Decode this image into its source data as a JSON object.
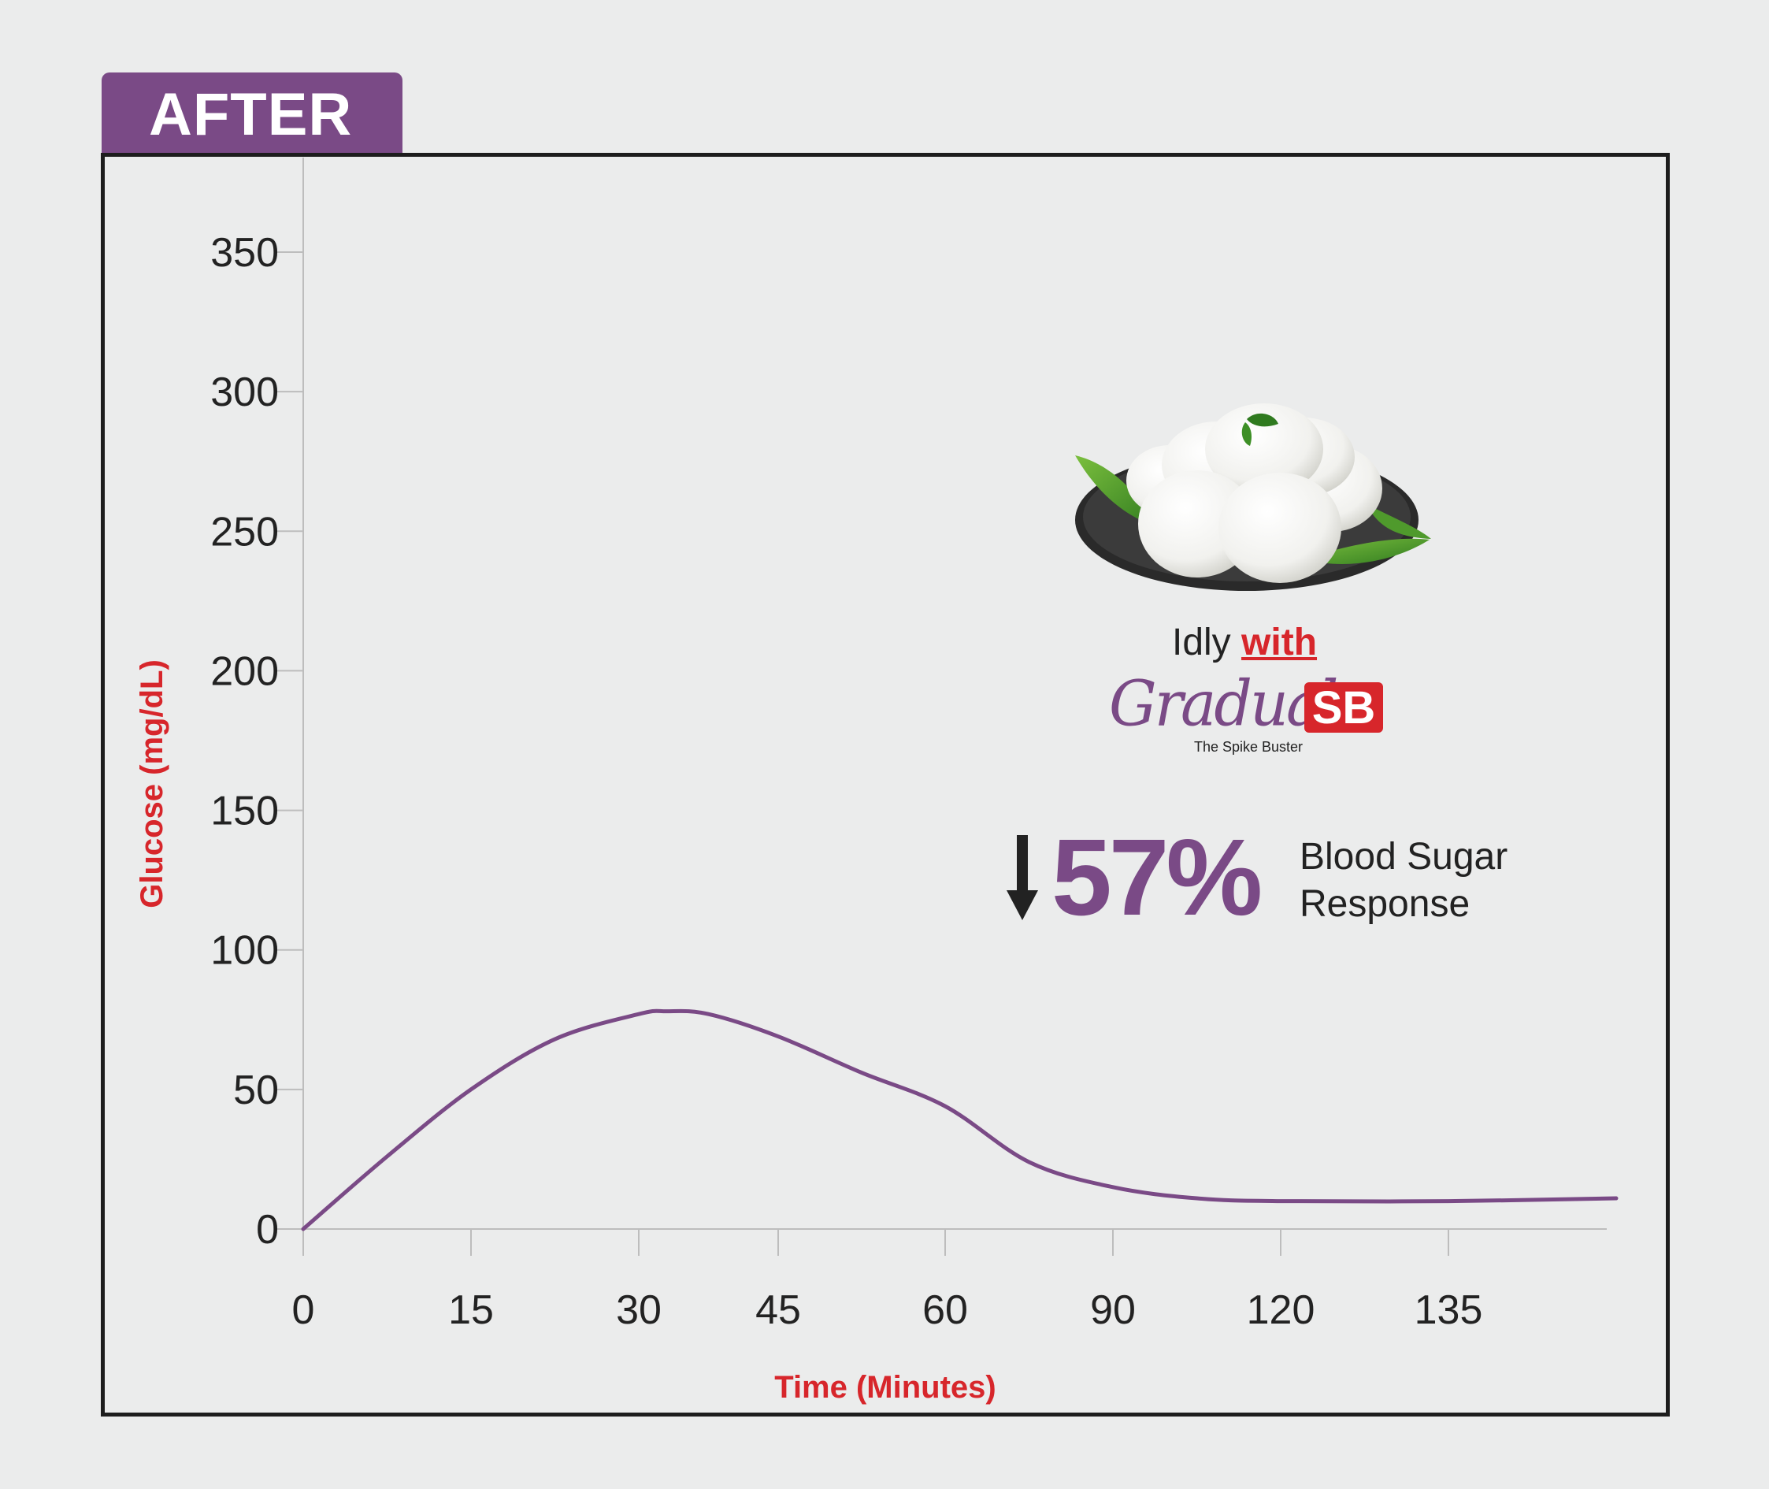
{
  "badge": {
    "label": "AFTER"
  },
  "chart_data": {
    "type": "line",
    "xlabel": "Time (Minutes)",
    "ylabel": "Glucose (mg/dL)",
    "categories": [
      "0",
      "15",
      "30",
      "45",
      "60",
      "90",
      "120",
      "135"
    ],
    "yticks": [
      0,
      50,
      100,
      150,
      200,
      250,
      300,
      350
    ],
    "ylim": [
      0,
      370
    ],
    "grid": false,
    "series": [
      {
        "color": "#7a4a86",
        "x": [
          0,
          7.5,
          15,
          22.5,
          30,
          33,
          37.5,
          45,
          52.5,
          60,
          75,
          90,
          105,
          120,
          135,
          150
        ],
        "y": [
          0,
          26,
          50,
          68,
          77,
          78,
          77,
          69,
          56,
          44,
          24,
          15,
          11,
          10,
          10,
          11
        ]
      }
    ],
    "annotation": {
      "product": "Idly",
      "with": "with",
      "brand_script": "Gradual",
      "brand_badge": "SB",
      "tagline": "The Spike Buster",
      "change": "57%",
      "direction": "down",
      "change_label_line1": "Blood Sugar",
      "change_label_line2": "Response"
    }
  },
  "colors": {
    "accent": "#7a4a86",
    "label_red": "#d7262b",
    "background": "#ebecec"
  }
}
